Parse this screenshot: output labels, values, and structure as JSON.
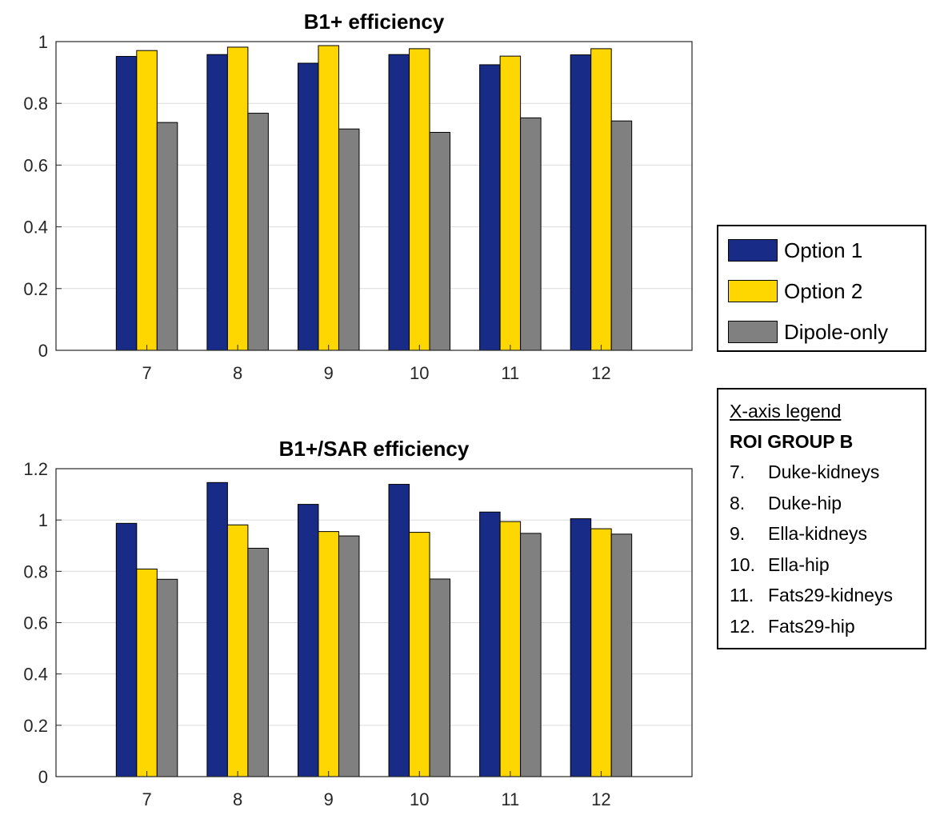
{
  "chart_data": [
    {
      "type": "bar",
      "title": "B1+ efficiency",
      "categories": [
        "7",
        "8",
        "9",
        "10",
        "11",
        "12"
      ],
      "series": [
        {
          "name": "Option 1",
          "color": "#172b87",
          "values": [
            0.952,
            0.958,
            0.93,
            0.958,
            0.925,
            0.957
          ]
        },
        {
          "name": "Option 2",
          "color": "#ffd700",
          "values": [
            0.971,
            0.982,
            0.987,
            0.977,
            0.953,
            0.977
          ]
        },
        {
          "name": "Dipole-only",
          "color": "#808080",
          "values": [
            0.738,
            0.768,
            0.717,
            0.706,
            0.753,
            0.743
          ]
        }
      ],
      "ylim": [
        0,
        1
      ],
      "yticks": [
        "0",
        "0.2",
        "0.4",
        "0.6",
        "0.8",
        "1"
      ],
      "xlabel": "",
      "ylabel": "",
      "grid": true
    },
    {
      "type": "bar",
      "title": "B1+/SAR efficiency",
      "categories": [
        "7",
        "8",
        "9",
        "10",
        "11",
        "12"
      ],
      "series": [
        {
          "name": "Option 1",
          "color": "#172b87",
          "values": [
            0.987,
            1.146,
            1.061,
            1.139,
            1.031,
            1.005
          ]
        },
        {
          "name": "Option 2",
          "color": "#ffd700",
          "values": [
            0.809,
            0.981,
            0.955,
            0.952,
            0.994,
            0.966
          ]
        },
        {
          "name": "Dipole-only",
          "color": "#808080",
          "values": [
            0.769,
            0.89,
            0.938,
            0.77,
            0.948,
            0.945
          ]
        }
      ],
      "ylim": [
        0,
        1.2
      ],
      "yticks": [
        "0",
        "0.2",
        "0.4",
        "0.6",
        "0.8",
        "1",
        "1.2"
      ],
      "xlabel": "",
      "ylabel": "",
      "grid": true
    }
  ],
  "legend": {
    "items": [
      {
        "label": "Option 1",
        "color": "#172b87"
      },
      {
        "label": "Option 2",
        "color": "#ffd700"
      },
      {
        "label": "Dipole-only",
        "color": "#808080"
      }
    ]
  },
  "x_axis_legend": {
    "title": "X-axis legend",
    "group": "ROI GROUP B",
    "items": [
      {
        "num": "7.",
        "label": "Duke-kidneys"
      },
      {
        "num": "8.",
        "label": "Duke-hip"
      },
      {
        "num": "9.",
        "label": "Ella-kidneys"
      },
      {
        "num": "10.",
        "label": "Ella-hip"
      },
      {
        "num": "11.",
        "label": "Fats29-kidneys"
      },
      {
        "num": "12.",
        "label": "Fats29-hip"
      }
    ]
  }
}
